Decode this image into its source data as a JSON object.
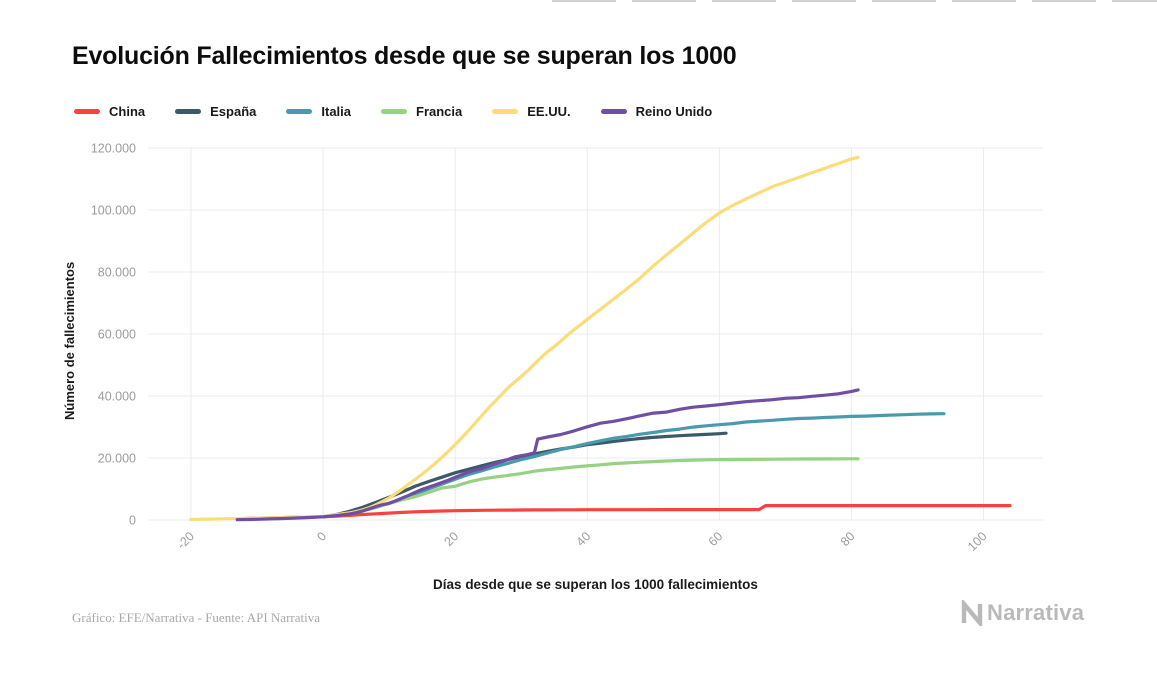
{
  "page": {
    "title": "Evolución Fallecimientos desde que se superan los 1000",
    "credit": "Gráfico: EFE/Narrativa - Fuente: API Narrativa",
    "brand": "Narrativa"
  },
  "chart_data": {
    "type": "line",
    "title": "Evolución Fallecimientos desde que se superan los 1000",
    "xlabel": "Días desde que se superan los 1000 fallecimientos",
    "ylabel": "Número de fallecimientos",
    "xlim": [
      -26.5,
      109
    ],
    "ylim": [
      0,
      120000
    ],
    "grid": true,
    "legend_position": "top",
    "xticks": [
      {
        "v": -20,
        "label": "-20"
      },
      {
        "v": 0,
        "label": "0"
      },
      {
        "v": 20,
        "label": "20"
      },
      {
        "v": 40,
        "label": "40"
      },
      {
        "v": 60,
        "label": "60"
      },
      {
        "v": 80,
        "label": "80"
      },
      {
        "v": 100,
        "label": "100"
      }
    ],
    "yticks": [
      {
        "v": 0,
        "label": "0"
      },
      {
        "v": 20000,
        "label": "20.000"
      },
      {
        "v": 40000,
        "label": "40.000"
      },
      {
        "v": 60000,
        "label": "60.000"
      },
      {
        "v": 80000,
        "label": "80.000"
      },
      {
        "v": 100000,
        "label": "100.000"
      },
      {
        "v": 120000,
        "label": "120.000"
      }
    ],
    "series": [
      {
        "id": "china",
        "name": "China",
        "color": "#f9423e",
        "points": [
          [
            -13,
            380
          ],
          [
            -11,
            520
          ],
          [
            -9,
            640
          ],
          [
            -7,
            740
          ],
          [
            -5,
            830
          ],
          [
            -3,
            920
          ],
          [
            -1,
            990
          ],
          [
            0,
            1020
          ],
          [
            2,
            1260
          ],
          [
            4,
            1490
          ],
          [
            6,
            1770
          ],
          [
            8,
            2000
          ],
          [
            10,
            2240
          ],
          [
            12,
            2440
          ],
          [
            14,
            2660
          ],
          [
            16,
            2790
          ],
          [
            18,
            2900
          ],
          [
            20,
            3000
          ],
          [
            22,
            3070
          ],
          [
            24,
            3120
          ],
          [
            26,
            3160
          ],
          [
            28,
            3200
          ],
          [
            30,
            3230
          ],
          [
            32,
            3250
          ],
          [
            34,
            3270
          ],
          [
            36,
            3290
          ],
          [
            38,
            3300
          ],
          [
            40,
            3310
          ],
          [
            44,
            3326
          ],
          [
            48,
            3335
          ],
          [
            52,
            3340
          ],
          [
            56,
            3344
          ],
          [
            60,
            3347
          ],
          [
            64,
            3350
          ],
          [
            66,
            3352
          ],
          [
            67,
            4636
          ],
          [
            70,
            4638
          ],
          [
            74,
            4640
          ],
          [
            78,
            4642
          ],
          [
            82,
            4643
          ],
          [
            86,
            4644
          ],
          [
            90,
            4645
          ],
          [
            94,
            4646
          ],
          [
            98,
            4647
          ],
          [
            102,
            4648
          ],
          [
            104,
            4649
          ]
        ]
      },
      {
        "id": "espana",
        "name": "España",
        "color": "#3d5866",
        "points": [
          [
            0,
            1043
          ],
          [
            2,
            1772
          ],
          [
            4,
            2808
          ],
          [
            6,
            4089
          ],
          [
            8,
            5690
          ],
          [
            10,
            7340
          ],
          [
            12,
            9053
          ],
          [
            14,
            10935
          ],
          [
            16,
            12418
          ],
          [
            18,
            13798
          ],
          [
            20,
            15238
          ],
          [
            22,
            16353
          ],
          [
            24,
            17489
          ],
          [
            26,
            18579
          ],
          [
            28,
            19478
          ],
          [
            30,
            20453
          ],
          [
            32,
            21282
          ],
          [
            34,
            22157
          ],
          [
            36,
            22902
          ],
          [
            38,
            23521
          ],
          [
            40,
            24275
          ],
          [
            42,
            24800
          ],
          [
            44,
            25350
          ],
          [
            46,
            25850
          ],
          [
            48,
            26300
          ],
          [
            50,
            26650
          ],
          [
            52,
            26950
          ],
          [
            54,
            27200
          ],
          [
            56,
            27420
          ],
          [
            58,
            27620
          ],
          [
            60,
            27850
          ],
          [
            61,
            28000
          ]
        ]
      },
      {
        "id": "italia",
        "name": "Italia",
        "color": "#4a9aad",
        "points": [
          [
            0,
            1016
          ],
          [
            2,
            1441
          ],
          [
            4,
            2158
          ],
          [
            6,
            2978
          ],
          [
            8,
            4032
          ],
          [
            10,
            5476
          ],
          [
            12,
            6820
          ],
          [
            14,
            8215
          ],
          [
            16,
            10023
          ],
          [
            18,
            11591
          ],
          [
            20,
            13155
          ],
          [
            22,
            14681
          ],
          [
            24,
            15887
          ],
          [
            26,
            17127
          ],
          [
            28,
            18279
          ],
          [
            30,
            19468
          ],
          [
            32,
            20465
          ],
          [
            34,
            21645
          ],
          [
            36,
            22745
          ],
          [
            38,
            23660
          ],
          [
            40,
            24648
          ],
          [
            42,
            25549
          ],
          [
            44,
            26384
          ],
          [
            46,
            26977
          ],
          [
            48,
            27682
          ],
          [
            50,
            28236
          ],
          [
            52,
            28884
          ],
          [
            54,
            29315
          ],
          [
            56,
            29958
          ],
          [
            58,
            30395
          ],
          [
            60,
            30739
          ],
          [
            62,
            31106
          ],
          [
            64,
            31610
          ],
          [
            66,
            31908
          ],
          [
            68,
            32169
          ],
          [
            70,
            32486
          ],
          [
            72,
            32735
          ],
          [
            74,
            32877
          ],
          [
            76,
            33072
          ],
          [
            78,
            33229
          ],
          [
            80,
            33415
          ],
          [
            82,
            33530
          ],
          [
            84,
            33689
          ],
          [
            86,
            33846
          ],
          [
            88,
            33964
          ],
          [
            90,
            34114
          ],
          [
            92,
            34223
          ],
          [
            94,
            34301
          ]
        ]
      },
      {
        "id": "francia",
        "name": "Francia",
        "color": "#97d183",
        "points": [
          [
            0,
            1100
          ],
          [
            2,
            1700
          ],
          [
            4,
            2314
          ],
          [
            6,
            3024
          ],
          [
            8,
            4032
          ],
          [
            10,
            5387
          ],
          [
            12,
            6507
          ],
          [
            14,
            7560
          ],
          [
            16,
            8911
          ],
          [
            18,
            10328
          ],
          [
            20,
            10869
          ],
          [
            22,
            12210
          ],
          [
            24,
            13197
          ],
          [
            26,
            13832
          ],
          [
            28,
            14393
          ],
          [
            30,
            14967
          ],
          [
            32,
            15729
          ],
          [
            34,
            16243
          ],
          [
            36,
            16642
          ],
          [
            38,
            17101
          ],
          [
            40,
            17467
          ],
          [
            42,
            17801
          ],
          [
            44,
            18195
          ],
          [
            46,
            18434
          ],
          [
            48,
            18655
          ],
          [
            50,
            18850
          ],
          [
            52,
            19021
          ],
          [
            54,
            19178
          ],
          [
            56,
            19323
          ],
          [
            58,
            19432
          ],
          [
            60,
            19490
          ],
          [
            64,
            19560
          ],
          [
            68,
            19620
          ],
          [
            72,
            19670
          ],
          [
            76,
            19710
          ],
          [
            80,
            19740
          ],
          [
            81,
            19750
          ]
        ]
      },
      {
        "id": "eeuu",
        "name": "EE.UU.",
        "color": "#fadd78",
        "points": [
          [
            -20,
            150
          ],
          [
            -17,
            280
          ],
          [
            -14,
            420
          ],
          [
            -11,
            560
          ],
          [
            -8,
            700
          ],
          [
            -5,
            850
          ],
          [
            -2,
            960
          ],
          [
            0,
            1100
          ],
          [
            2,
            1700
          ],
          [
            4,
            2300
          ],
          [
            5,
            2700
          ],
          [
            6,
            3300
          ],
          [
            7,
            4000
          ],
          [
            8,
            4900
          ],
          [
            9,
            6000
          ],
          [
            10,
            7100
          ],
          [
            11,
            8500
          ],
          [
            12,
            10000
          ],
          [
            13,
            11600
          ],
          [
            14,
            13200
          ],
          [
            15,
            14800
          ],
          [
            16,
            16500
          ],
          [
            17,
            18300
          ],
          [
            18,
            20200
          ],
          [
            19,
            22200
          ],
          [
            20,
            24300
          ],
          [
            21,
            26500
          ],
          [
            22,
            28800
          ],
          [
            23,
            31200
          ],
          [
            24,
            33600
          ],
          [
            25,
            36000
          ],
          [
            26,
            38200
          ],
          [
            27,
            40400
          ],
          [
            28,
            42600
          ],
          [
            29,
            44500
          ],
          [
            30,
            46300
          ],
          [
            31,
            48200
          ],
          [
            32,
            50300
          ],
          [
            33,
            52400
          ],
          [
            34,
            54300
          ],
          [
            35,
            55900
          ],
          [
            36,
            57700
          ],
          [
            37,
            59600
          ],
          [
            38,
            61400
          ],
          [
            39,
            63000
          ],
          [
            40,
            64700
          ],
          [
            42,
            68000
          ],
          [
            44,
            71300
          ],
          [
            46,
            74600
          ],
          [
            48,
            78000
          ],
          [
            50,
            82000
          ],
          [
            52,
            85500
          ],
          [
            54,
            89000
          ],
          [
            56,
            92500
          ],
          [
            58,
            96000
          ],
          [
            60,
            99000
          ],
          [
            62,
            101500
          ],
          [
            64,
            103500
          ],
          [
            66,
            105500
          ],
          [
            68,
            107500
          ],
          [
            70,
            109000
          ],
          [
            72,
            110500
          ],
          [
            74,
            112000
          ],
          [
            76,
            113500
          ],
          [
            78,
            115000
          ],
          [
            80,
            116500
          ],
          [
            81,
            117000
          ]
        ]
      },
      {
        "id": "reino-unido",
        "name": "Reino Unido",
        "color": "#6f4fa3",
        "points": [
          [
            -13,
            100
          ],
          [
            -10,
            230
          ],
          [
            -8,
            350
          ],
          [
            -6,
            480
          ],
          [
            -4,
            640
          ],
          [
            -2,
            820
          ],
          [
            0,
            1020
          ],
          [
            2,
            1410
          ],
          [
            4,
            1940
          ],
          [
            5,
            2350
          ],
          [
            6,
            2930
          ],
          [
            7,
            3610
          ],
          [
            8,
            4320
          ],
          [
            9,
            4940
          ],
          [
            10,
            5370
          ],
          [
            11,
            6160
          ],
          [
            12,
            7100
          ],
          [
            13,
            7980
          ],
          [
            14,
            8960
          ],
          [
            15,
            9880
          ],
          [
            16,
            10620
          ],
          [
            17,
            11330
          ],
          [
            18,
            12110
          ],
          [
            19,
            12870
          ],
          [
            20,
            13730
          ],
          [
            21,
            14580
          ],
          [
            22,
            15460
          ],
          [
            23,
            16060
          ],
          [
            24,
            16510
          ],
          [
            25,
            17340
          ],
          [
            26,
            18100
          ],
          [
            27,
            18740
          ],
          [
            28,
            19510
          ],
          [
            29,
            20320
          ],
          [
            30,
            20730
          ],
          [
            31,
            21090
          ],
          [
            32,
            21680
          ],
          [
            32.5,
            26100
          ],
          [
            34,
            26770
          ],
          [
            36,
            27580
          ],
          [
            38,
            28730
          ],
          [
            40,
            30080
          ],
          [
            42,
            31240
          ],
          [
            44,
            31850
          ],
          [
            46,
            32690
          ],
          [
            48,
            33610
          ],
          [
            50,
            34470
          ],
          [
            52,
            34800
          ],
          [
            54,
            35700
          ],
          [
            56,
            36390
          ],
          [
            58,
            36790
          ],
          [
            60,
            37190
          ],
          [
            62,
            37710
          ],
          [
            64,
            38170
          ],
          [
            66,
            38490
          ],
          [
            68,
            38820
          ],
          [
            70,
            39250
          ],
          [
            72,
            39450
          ],
          [
            74,
            39900
          ],
          [
            76,
            40260
          ],
          [
            78,
            40700
          ],
          [
            80,
            41500
          ],
          [
            81,
            41969
          ]
        ]
      }
    ]
  }
}
